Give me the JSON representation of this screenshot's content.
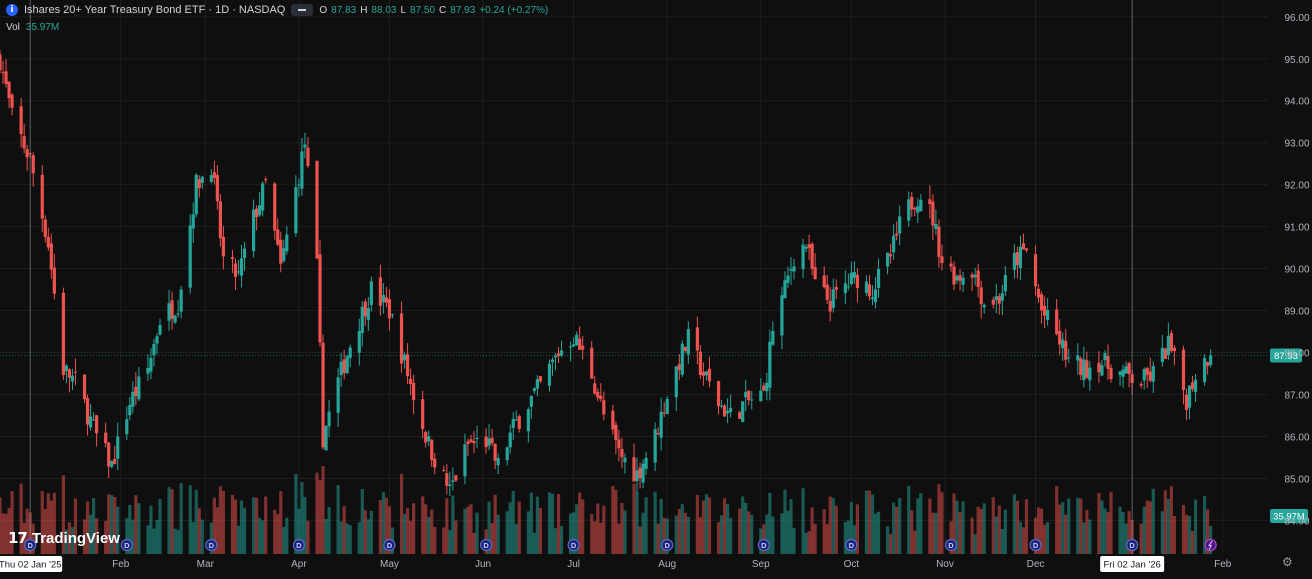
{
  "legend": {
    "title": "Ishares 20+ Year Treasury Bond ETF · 1D · NASDAQ",
    "ohlc": {
      "o_label": "O",
      "o": "87.83",
      "h_label": "H",
      "h": "88.03",
      "l_label": "L",
      "l": "87.50",
      "c_label": "C",
      "c": "87.93",
      "change": "+0.24 (+0.27%)"
    },
    "vol_label": "Vol",
    "vol_value": "35.97M"
  },
  "branding": {
    "name": "TradingView"
  },
  "colors": {
    "background": "#0f0f0f",
    "up": "#26a69a",
    "down": "#ef5350",
    "grid": "#1e1e1e",
    "price_line": "#26a69a",
    "crosshair": "#9598a1",
    "axis_text": "#b2b5be"
  },
  "chart_data": {
    "type": "candlestick",
    "title": "Ishares 20+ Year Treasury Bond ETF",
    "ylim": [
      83.2,
      96.4
    ],
    "y_ticks": [
      "84.00",
      "85.00",
      "86.00",
      "87.00",
      "88.00",
      "89.00",
      "90.00",
      "91.00",
      "92.00",
      "93.00",
      "94.00",
      "95.00",
      "96.00"
    ],
    "x_range": [
      "2024-12-23",
      "2026-02-16"
    ],
    "x_ticks": [
      {
        "date": "2025-02-01",
        "label": "Feb"
      },
      {
        "date": "2025-03-01",
        "label": "Mar"
      },
      {
        "date": "2025-04-01",
        "label": "Apr"
      },
      {
        "date": "2025-05-01",
        "label": "May"
      },
      {
        "date": "2025-06-01",
        "label": "Jun"
      },
      {
        "date": "2025-07-01",
        "label": "Jul"
      },
      {
        "date": "2025-08-01",
        "label": "Aug"
      },
      {
        "date": "2025-09-01",
        "label": "Sep"
      },
      {
        "date": "2025-10-01",
        "label": "Oct"
      },
      {
        "date": "2025-11-01",
        "label": "Nov"
      },
      {
        "date": "2025-12-01",
        "label": "Dec"
      },
      {
        "date": "2026-02-01",
        "label": "Feb"
      }
    ],
    "highlighted_dates": [
      {
        "date": "2025-01-02",
        "label": "Thu 02 Jan '25"
      },
      {
        "date": "2026-01-02",
        "label": "Fri 02 Jan '26"
      }
    ],
    "last_price": {
      "value": 87.93,
      "label": "87.93"
    },
    "volume_last_label": "35.97M",
    "dividend_markers": [
      {
        "date": "2025-01-02",
        "label": "D"
      },
      {
        "date": "2025-02-03",
        "label": "D"
      },
      {
        "date": "2025-03-03",
        "label": "D"
      },
      {
        "date": "2025-04-01",
        "label": "D"
      },
      {
        "date": "2025-05-01",
        "label": "D"
      },
      {
        "date": "2025-06-02",
        "label": "D"
      },
      {
        "date": "2025-07-01",
        "label": "D"
      },
      {
        "date": "2025-08-01",
        "label": "D"
      },
      {
        "date": "2025-09-02",
        "label": "D"
      },
      {
        "date": "2025-10-01",
        "label": "D"
      },
      {
        "date": "2025-11-03",
        "label": "D"
      },
      {
        "date": "2025-12-01",
        "label": "D"
      },
      {
        "date": "2026-01-02",
        "label": "D"
      }
    ],
    "split_marker": {
      "date": "2026-01-28"
    },
    "close_path": [
      {
        "date": "2024-12-23",
        "close": 95.0
      },
      {
        "date": "2024-12-27",
        "close": 93.6
      },
      {
        "date": "2025-01-02",
        "close": 92.6
      },
      {
        "date": "2025-01-08",
        "close": 90.6
      },
      {
        "date": "2025-01-13",
        "close": 87.6
      },
      {
        "date": "2025-01-17",
        "close": 87.3
      },
      {
        "date": "2025-01-24",
        "close": 86.0
      },
      {
        "date": "2025-01-29",
        "close": 85.3
      },
      {
        "date": "2025-02-04",
        "close": 86.8
      },
      {
        "date": "2025-02-10",
        "close": 87.6
      },
      {
        "date": "2025-02-14",
        "close": 88.8
      },
      {
        "date": "2025-02-20",
        "close": 89.2
      },
      {
        "date": "2025-02-26",
        "close": 92.0
      },
      {
        "date": "2025-03-03",
        "close": 92.5
      },
      {
        "date": "2025-03-07",
        "close": 90.2
      },
      {
        "date": "2025-03-12",
        "close": 89.8
      },
      {
        "date": "2025-03-17",
        "close": 91.2
      },
      {
        "date": "2025-03-21",
        "close": 92.0
      },
      {
        "date": "2025-03-26",
        "close": 90.0
      },
      {
        "date": "2025-04-03",
        "close": 93.0
      },
      {
        "date": "2025-04-07",
        "close": 90.0
      },
      {
        "date": "2025-04-09",
        "close": 86.0
      },
      {
        "date": "2025-04-14",
        "close": 87.3
      },
      {
        "date": "2025-04-18",
        "close": 88.2
      },
      {
        "date": "2025-04-25",
        "close": 89.5
      },
      {
        "date": "2025-05-01",
        "close": 89.0
      },
      {
        "date": "2025-05-05",
        "close": 88.0
      },
      {
        "date": "2025-05-09",
        "close": 87.0
      },
      {
        "date": "2025-05-14",
        "close": 85.8
      },
      {
        "date": "2025-05-21",
        "close": 84.7
      },
      {
        "date": "2025-05-27",
        "close": 85.8
      },
      {
        "date": "2025-06-02",
        "close": 85.9
      },
      {
        "date": "2025-06-06",
        "close": 85.3
      },
      {
        "date": "2025-06-11",
        "close": 86.2
      },
      {
        "date": "2025-06-16",
        "close": 86.8
      },
      {
        "date": "2025-06-20",
        "close": 87.2
      },
      {
        "date": "2025-06-26",
        "close": 88.0
      },
      {
        "date": "2025-07-01",
        "close": 88.4
      },
      {
        "date": "2025-07-07",
        "close": 87.5
      },
      {
        "date": "2025-07-11",
        "close": 86.5
      },
      {
        "date": "2025-07-16",
        "close": 85.6
      },
      {
        "date": "2025-07-22",
        "close": 85.1
      },
      {
        "date": "2025-07-28",
        "close": 86.0
      },
      {
        "date": "2025-08-01",
        "close": 87.0
      },
      {
        "date": "2025-08-05",
        "close": 87.8
      },
      {
        "date": "2025-08-08",
        "close": 88.3
      },
      {
        "date": "2025-08-13",
        "close": 87.5
      },
      {
        "date": "2025-08-18",
        "close": 86.8
      },
      {
        "date": "2025-08-22",
        "close": 86.5
      },
      {
        "date": "2025-08-27",
        "close": 86.8
      },
      {
        "date": "2025-09-02",
        "close": 87.0
      },
      {
        "date": "2025-09-05",
        "close": 88.6
      },
      {
        "date": "2025-09-09",
        "close": 89.5
      },
      {
        "date": "2025-09-12",
        "close": 90.3
      },
      {
        "date": "2025-09-16",
        "close": 90.6
      },
      {
        "date": "2025-09-19",
        "close": 89.6
      },
      {
        "date": "2025-09-24",
        "close": 89.2
      },
      {
        "date": "2025-09-29",
        "close": 89.6
      },
      {
        "date": "2025-10-03",
        "close": 89.8
      },
      {
        "date": "2025-10-08",
        "close": 89.5
      },
      {
        "date": "2025-10-14",
        "close": 90.3
      },
      {
        "date": "2025-10-17",
        "close": 91.0
      },
      {
        "date": "2025-10-21",
        "close": 91.6
      },
      {
        "date": "2025-10-24",
        "close": 91.8
      },
      {
        "date": "2025-10-28",
        "close": 91.2
      },
      {
        "date": "2025-10-31",
        "close": 90.2
      },
      {
        "date": "2025-11-05",
        "close": 89.8
      },
      {
        "date": "2025-11-10",
        "close": 90.0
      },
      {
        "date": "2025-11-14",
        "close": 89.2
      },
      {
        "date": "2025-11-19",
        "close": 89.3
      },
      {
        "date": "2025-11-24",
        "close": 90.2
      },
      {
        "date": "2025-11-28",
        "close": 90.4
      },
      {
        "date": "2025-12-03",
        "close": 89.0
      },
      {
        "date": "2025-12-08",
        "close": 88.4
      },
      {
        "date": "2025-12-12",
        "close": 87.8
      },
      {
        "date": "2025-12-17",
        "close": 87.6
      },
      {
        "date": "2025-12-22",
        "close": 87.8
      },
      {
        "date": "2025-12-29",
        "close": 87.5
      },
      {
        "date": "2026-01-05",
        "close": 87.3
      },
      {
        "date": "2026-01-09",
        "close": 87.5
      },
      {
        "date": "2026-01-14",
        "close": 88.2
      },
      {
        "date": "2026-01-20",
        "close": 86.9
      },
      {
        "date": "2026-01-23",
        "close": 87.5
      },
      {
        "date": "2026-01-27",
        "close": 87.9
      },
      {
        "date": "2026-01-28",
        "close": 87.93
      }
    ],
    "volume_range": [
      0,
      48
    ],
    "grid": true,
    "legend_position": "top-left"
  }
}
